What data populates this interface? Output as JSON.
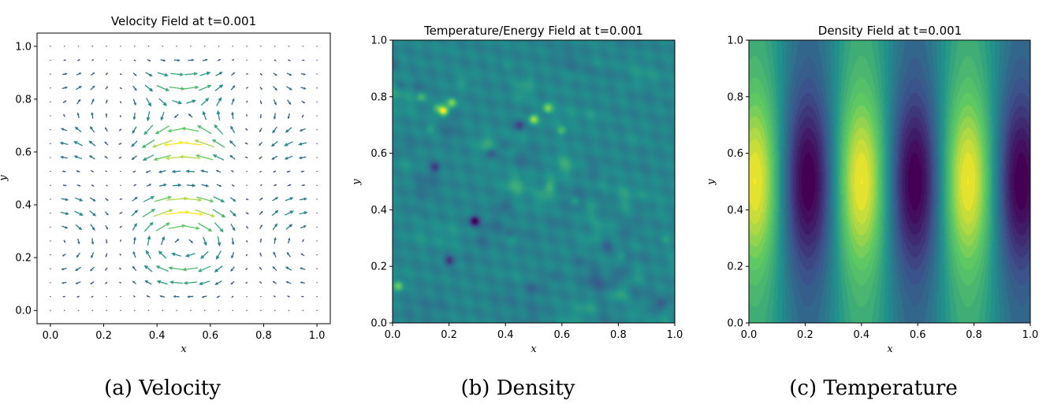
{
  "figure": {
    "captions": [
      "(a) Velocity",
      "(b) Density",
      "(c) Temperature"
    ]
  },
  "colormap": {
    "name": "viridis",
    "stops": [
      "#440154",
      "#3b528b",
      "#21918c",
      "#5ec962",
      "#fde725"
    ]
  },
  "chart_data": [
    {
      "type": "quiver",
      "title": "Velocity Field at t=0.001",
      "xlabel": "x",
      "ylabel": "y",
      "xlim": [
        -0.05,
        1.05
      ],
      "ylim": [
        -0.05,
        1.05
      ],
      "xticks": [
        "0.0",
        "0.2",
        "0.4",
        "0.6",
        "0.8",
        "1.0"
      ],
      "yticks": [
        "0.0",
        "0.2",
        "0.4",
        "0.6",
        "0.8",
        "1.0"
      ],
      "grid": "20x20 arrows on [0,1]x[0,1]",
      "field": "horizontal jets with maximum speed near y=0.4 and y=0.6, vortices near x=0.25 and x=0.75"
    },
    {
      "type": "heatmap",
      "title": "Temperature/Energy Field at t=0.001",
      "xlabel": "x",
      "ylabel": "y",
      "xlim": [
        0.0,
        1.0
      ],
      "ylim": [
        0.0,
        1.0
      ],
      "xticks": [
        "0.0",
        "0.2",
        "0.4",
        "0.6",
        "0.8",
        "1.0"
      ],
      "yticks": [
        "0.0",
        "0.2",
        "0.4",
        "0.6",
        "0.8",
        "1.0"
      ],
      "baseline": 0.45,
      "hotspots": [
        {
          "x": 0.18,
          "y": 0.75,
          "v": 1.0
        },
        {
          "x": 0.21,
          "y": 0.78,
          "v": 0.8
        },
        {
          "x": 0.5,
          "y": 0.72,
          "v": 0.85
        },
        {
          "x": 0.55,
          "y": 0.76,
          "v": 0.8
        },
        {
          "x": 0.02,
          "y": 0.13,
          "v": 0.75
        },
        {
          "x": 0.6,
          "y": 0.68,
          "v": 0.65
        },
        {
          "x": 0.65,
          "y": 0.43,
          "v": 0.6
        },
        {
          "x": 0.1,
          "y": 0.8,
          "v": 0.65
        },
        {
          "x": 0.16,
          "y": 0.76,
          "v": 0.7
        }
      ],
      "coldspots": [
        {
          "x": 0.29,
          "y": 0.36,
          "v": 0.0
        },
        {
          "x": 0.2,
          "y": 0.22,
          "v": 0.15
        },
        {
          "x": 0.15,
          "y": 0.55,
          "v": 0.2
        },
        {
          "x": 0.45,
          "y": 0.7,
          "v": 0.2
        },
        {
          "x": 0.35,
          "y": 0.6,
          "v": 0.25
        }
      ]
    },
    {
      "type": "heatmap",
      "title": "Density Field at t=0.001",
      "xlabel": "x",
      "ylabel": "y",
      "xlim": [
        0.0,
        1.0
      ],
      "ylim": [
        0.0,
        1.0
      ],
      "xticks": [
        "0.0",
        "0.2",
        "0.4",
        "0.6",
        "0.8",
        "1.0"
      ],
      "yticks": [
        "0.0",
        "0.2",
        "0.4",
        "0.6",
        "0.8",
        "1.0"
      ],
      "pattern": "vertical bands",
      "band_maxima_x": [
        0.03,
        0.4,
        0.79
      ],
      "band_minima_x": [
        0.22,
        0.59,
        0.97
      ],
      "vertical_peak_y": 0.5
    }
  ]
}
